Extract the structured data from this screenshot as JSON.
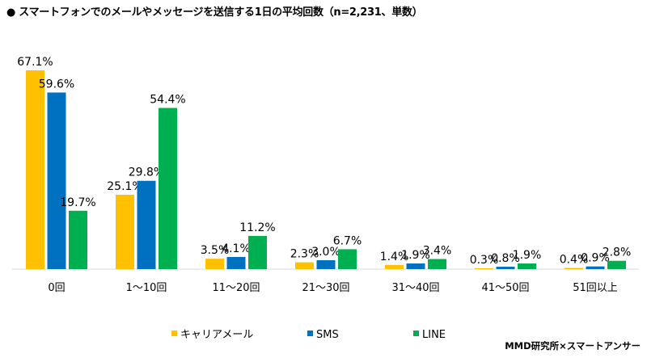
{
  "title": "●  スマートフォンでのメールやメッセージを送信する1日の平均回数（n=2,231、単数）",
  "credit": "MMD研究所×スマートアンサー",
  "chart_data": {
    "type": "bar",
    "title": "スマートフォンでのメールやメッセージを送信する1日の平均回数（n=2,231、単数）",
    "categories": [
      "0回",
      "1～10回",
      "11～20回",
      "21～30回",
      "31～40回",
      "41～50回",
      "51回以上"
    ],
    "series": [
      {
        "name": "キャリアメール",
        "color": "#FFC000",
        "values": [
          67.1,
          25.1,
          3.5,
          2.3,
          1.4,
          0.3,
          0.4
        ]
      },
      {
        "name": "SMS",
        "color": "#0070C0",
        "values": [
          59.6,
          29.8,
          4.1,
          3.0,
          1.9,
          0.8,
          0.9
        ]
      },
      {
        "name": "LINE",
        "color": "#00B050",
        "values": [
          19.7,
          54.4,
          11.2,
          6.7,
          3.4,
          1.9,
          2.8
        ]
      }
    ],
    "value_suffix": "%",
    "xlabel": "",
    "ylabel": "",
    "ylim": [
      0,
      70
    ],
    "grid": false,
    "legend": "bottom"
  }
}
